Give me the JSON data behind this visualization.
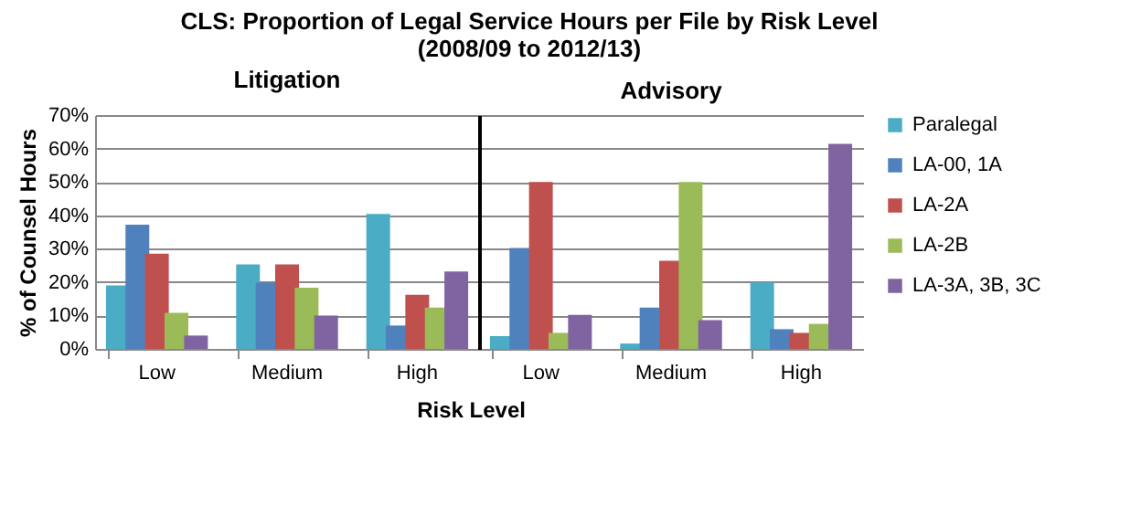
{
  "chart_data": [
    {
      "type": "bar",
      "title": "CLS: Proportion of Legal Service Hours per File by Risk Level\n(2008/09 to 2012/13)",
      "subtitle": "Litigation",
      "xlabel": "Risk  Level",
      "ylabel": "% of Counsel Hours",
      "categories": [
        "Low",
        "Medium",
        "High"
      ],
      "series": [
        {
          "color": "#4bacc6",
          "values": [
            19,
            25.3,
            40.4
          ]
        },
        {
          "color": "#4f81bd",
          "values": [
            37.2,
            19.9,
            7
          ]
        },
        {
          "color": "#c0504d",
          "values": [
            28.5,
            25.3,
            16.2
          ]
        },
        {
          "color": "#9bbb59",
          "values": [
            10.8,
            18.3,
            12.4
          ]
        },
        {
          "color": "#8064a2",
          "values": [
            4,
            10,
            23.2
          ]
        }
      ],
      "ylim": [
        0,
        70
      ],
      "yticks": [
        {
          "value": 0,
          "label": "0%"
        },
        {
          "value": 10,
          "label": "10%"
        },
        {
          "value": 20,
          "label": "20%"
        },
        {
          "value": 30,
          "label": "30%"
        },
        {
          "value": 40,
          "label": "40%"
        },
        {
          "value": 50,
          "label": "50%"
        },
        {
          "value": 60,
          "label": "60%"
        },
        {
          "value": 70,
          "label": "70%"
        }
      ],
      "grid": "y"
    },
    {
      "type": "bar",
      "subtitle": "Advisory",
      "categories": [
        "Low",
        "Medium",
        "High"
      ],
      "series": [
        {
          "name": "Paralegal",
          "color": "#4bacc6",
          "values": [
            3.8,
            1.6,
            19.9
          ]
        },
        {
          "name": "LA-00, 1A",
          "color": "#4f81bd",
          "values": [
            30.2,
            12.4,
            5.9
          ]
        },
        {
          "name": "LA-2A",
          "color": "#c0504d",
          "values": [
            50,
            26.4,
            4.8
          ]
        },
        {
          "name": "LA-2B",
          "color": "#9bbb59",
          "values": [
            4.8,
            50,
            7.5
          ]
        },
        {
          "name": "LA-3A, 3B, 3C",
          "color": "#8064a2",
          "values": [
            10.2,
            8.6,
            61.4
          ]
        }
      ],
      "ylim": [
        0,
        70
      ],
      "yticks": [
        0,
        10,
        20,
        30,
        40,
        50,
        60,
        70
      ],
      "grid": "y",
      "tick_labels": "x",
      "legend": "right"
    }
  ]
}
